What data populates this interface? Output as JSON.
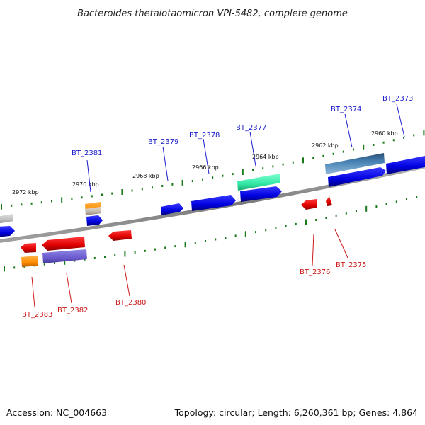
{
  "title": "Bacteroides thetaiotaomicron VPI-5482, complete genome",
  "footer": {
    "accession": "Accession: NC_004663",
    "topology": "Topology: circular; Length: 6,260,361 bp; Genes: 4,864"
  },
  "colors": {
    "forward_label": "#1a1acc",
    "reverse_label": "#cc1a1a",
    "tick": "#1a7a1a",
    "backbone": "#8a8a8a"
  },
  "scale_labels": [
    "2972 kbp",
    "2970 kbp",
    "2968 kbp",
    "2966 kbp",
    "2964 kbp",
    "2962 kbp",
    "2960 kbp"
  ],
  "forward_labels": [
    "BT_2381",
    "BT_2379",
    "BT_2378",
    "BT_2377",
    "BT_2374",
    "BT_2373"
  ],
  "reverse_labels": [
    "BT_2383",
    "BT_2382",
    "BT_2380",
    "BT_2376",
    "BT_2375"
  ]
}
